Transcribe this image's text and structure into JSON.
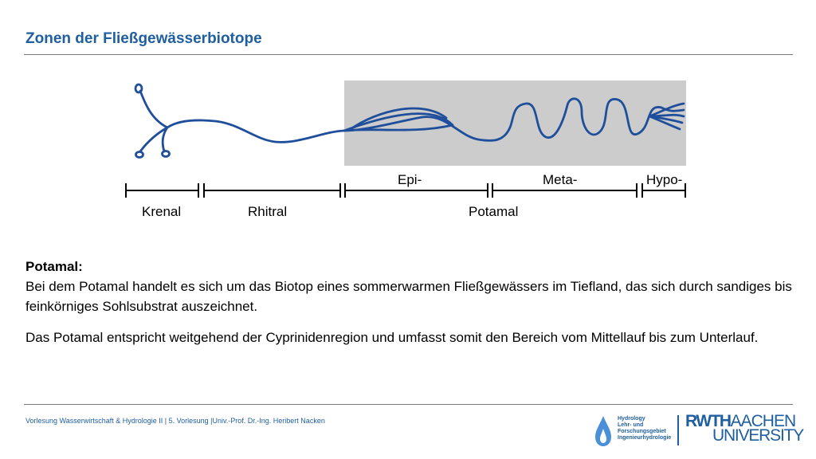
{
  "page": {
    "title": "Zonen der Fließgewässerbiotope",
    "accent_color": "#1f5fa0",
    "river_color": "#1f4e9b",
    "highlight_color": "#cccccc"
  },
  "diagram": {
    "highlighted_zone": "Potamal",
    "sub_labels": {
      "epi": "Epi-",
      "meta": "Meta-",
      "hypo": "Hypo-"
    },
    "zone_labels": {
      "krenal": "Krenal",
      "rhitral": "Rhitral",
      "potamal": "Potamal"
    }
  },
  "content": {
    "heading": "Potamal:",
    "paragraph1": "Bei dem Potamal handelt es sich um das Biotop eines sommerwarmen Fließgewässers im Tiefland, das sich durch sandiges bis feinkörniges Sohlsubstrat auszeichnet.",
    "paragraph2": "Das Potamal entspricht weitgehend der Cyprinidenregion und umfasst somit den Bereich vom Mittellauf bis zum Unterlauf."
  },
  "footer": {
    "text": "Vorlesung Wasserwirtschaft & Hydrologie II | 5. Vorlesung |Univ.-Prof. Dr.-Ing. Heribert Nacken"
  },
  "logos": {
    "hydrology_lines": [
      "Hydrology",
      "Lehr- und",
      "Forschungsgebiet",
      "Ingenieurhydrologie"
    ],
    "rwth_part1": "RWTH",
    "rwth_part2": "AACHEN",
    "rwth_line2": "UNIVERSITY"
  }
}
